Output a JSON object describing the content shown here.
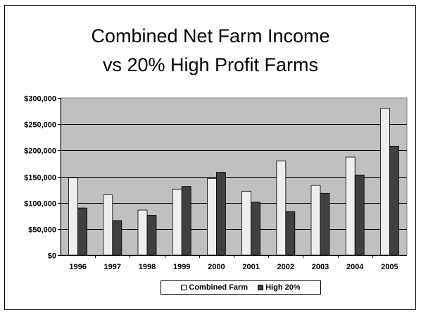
{
  "chart_data": {
    "type": "bar",
    "title_lines": [
      "Combined Net Farm Income",
      "vs 20% High Profit Farms"
    ],
    "categories": [
      "1996",
      "1997",
      "1998",
      "1999",
      "2000",
      "2001",
      "2002",
      "2003",
      "2004",
      "2005"
    ],
    "series": [
      {
        "name": "Combined Farm",
        "color": "#eeeeee",
        "values": [
          148000,
          115000,
          86000,
          126000,
          146000,
          122000,
          180000,
          133000,
          187000,
          280000
        ]
      },
      {
        "name": "High 20%",
        "color": "#404040",
        "values": [
          90000,
          66000,
          76000,
          131000,
          158000,
          101000,
          83000,
          118000,
          153000,
          208000
        ]
      }
    ],
    "y_ticks": [
      "$0",
      "$50,000",
      "$100,000",
      "$150,000",
      "$200,000",
      "$250,000",
      "$300,000"
    ],
    "ylim": [
      0,
      300000
    ],
    "plot_background": "#c0c0c0",
    "grid": true,
    "legend_position": "bottom"
  }
}
